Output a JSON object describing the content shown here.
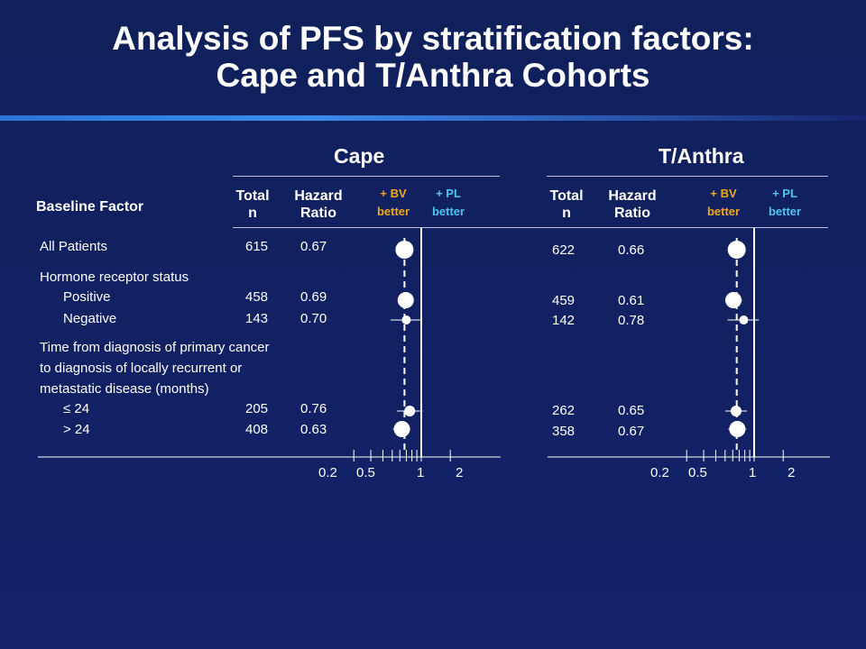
{
  "slide": {
    "title_line1": "Analysis of PFS by stratification factors:",
    "title_line2": "Cape and T/Anthra Cohorts",
    "baseline_factor_header": "Baseline Factor",
    "total_header_1": "Total",
    "total_header_2": "n",
    "hr_header_1": "Hazard",
    "hr_header_2": "Ratio",
    "bv_label_1": "+ BV",
    "bv_label_2": "better",
    "pl_label_1": "+ PL",
    "pl_label_2": "better",
    "colors": {
      "bv": "#f0a818",
      "pl": "#4fc4ef",
      "background": "#13226a"
    }
  },
  "rows": {
    "all_patients": "All Patients",
    "hormone_group": "Hormone receptor status",
    "positive": "Positive",
    "negative": "Negative",
    "time_line1": "Time from diagnosis of primary cancer",
    "time_line2": "to diagnosis of locally recurrent or",
    "time_line3": "metastatic disease (months)",
    "le24": "≤ 24",
    "gt24": "> 24"
  },
  "chart_data": [
    {
      "type": "forest",
      "title": "Cape",
      "x_scale": "log",
      "x_ticks": [
        "0.2",
        "0.5",
        "1",
        "2"
      ],
      "reference_line": 1,
      "median_line": 0.67,
      "rows": [
        {
          "label": "All Patients",
          "n": "615",
          "hr": "0.67",
          "hr_value": 0.67,
          "ci": [
            0.57,
            0.79
          ]
        },
        {
          "label": "Positive",
          "n": "458",
          "hr": "0.69",
          "hr_value": 0.69,
          "ci": [
            0.57,
            0.83
          ]
        },
        {
          "label": "Negative",
          "n": "143",
          "hr": "0.70",
          "hr_value": 0.7,
          "ci": [
            0.48,
            1.02
          ]
        },
        {
          "label": "≤ 24",
          "n": "205",
          "hr": "0.76",
          "hr_value": 0.76,
          "ci": [
            0.56,
            1.03
          ]
        },
        {
          "label": "> 24",
          "n": "408",
          "hr": "0.63",
          "hr_value": 0.63,
          "ci": [
            0.51,
            0.77
          ]
        }
      ]
    },
    {
      "type": "forest",
      "title": "T/Anthra",
      "x_scale": "log",
      "x_ticks": [
        "0.2",
        "0.5",
        "1",
        "2"
      ],
      "reference_line": 1,
      "median_line": 0.66,
      "rows": [
        {
          "label": "All Patients",
          "n": "622",
          "hr": "0.66",
          "hr_value": 0.66,
          "ci": [
            0.56,
            0.79
          ]
        },
        {
          "label": "Positive",
          "n": "459",
          "hr": "0.61",
          "hr_value": 0.61,
          "ci": [
            0.5,
            0.75
          ]
        },
        {
          "label": "Negative",
          "n": "142",
          "hr": "0.78",
          "hr_value": 0.78,
          "ci": [
            0.53,
            1.12
          ]
        },
        {
          "label": "≤ 24",
          "n": "262",
          "hr": "0.65",
          "hr_value": 0.65,
          "ci": [
            0.5,
            0.84
          ]
        },
        {
          "label": "> 24",
          "n": "358",
          "hr": "0.67",
          "hr_value": 0.67,
          "ci": [
            0.54,
            0.83
          ]
        }
      ]
    }
  ]
}
